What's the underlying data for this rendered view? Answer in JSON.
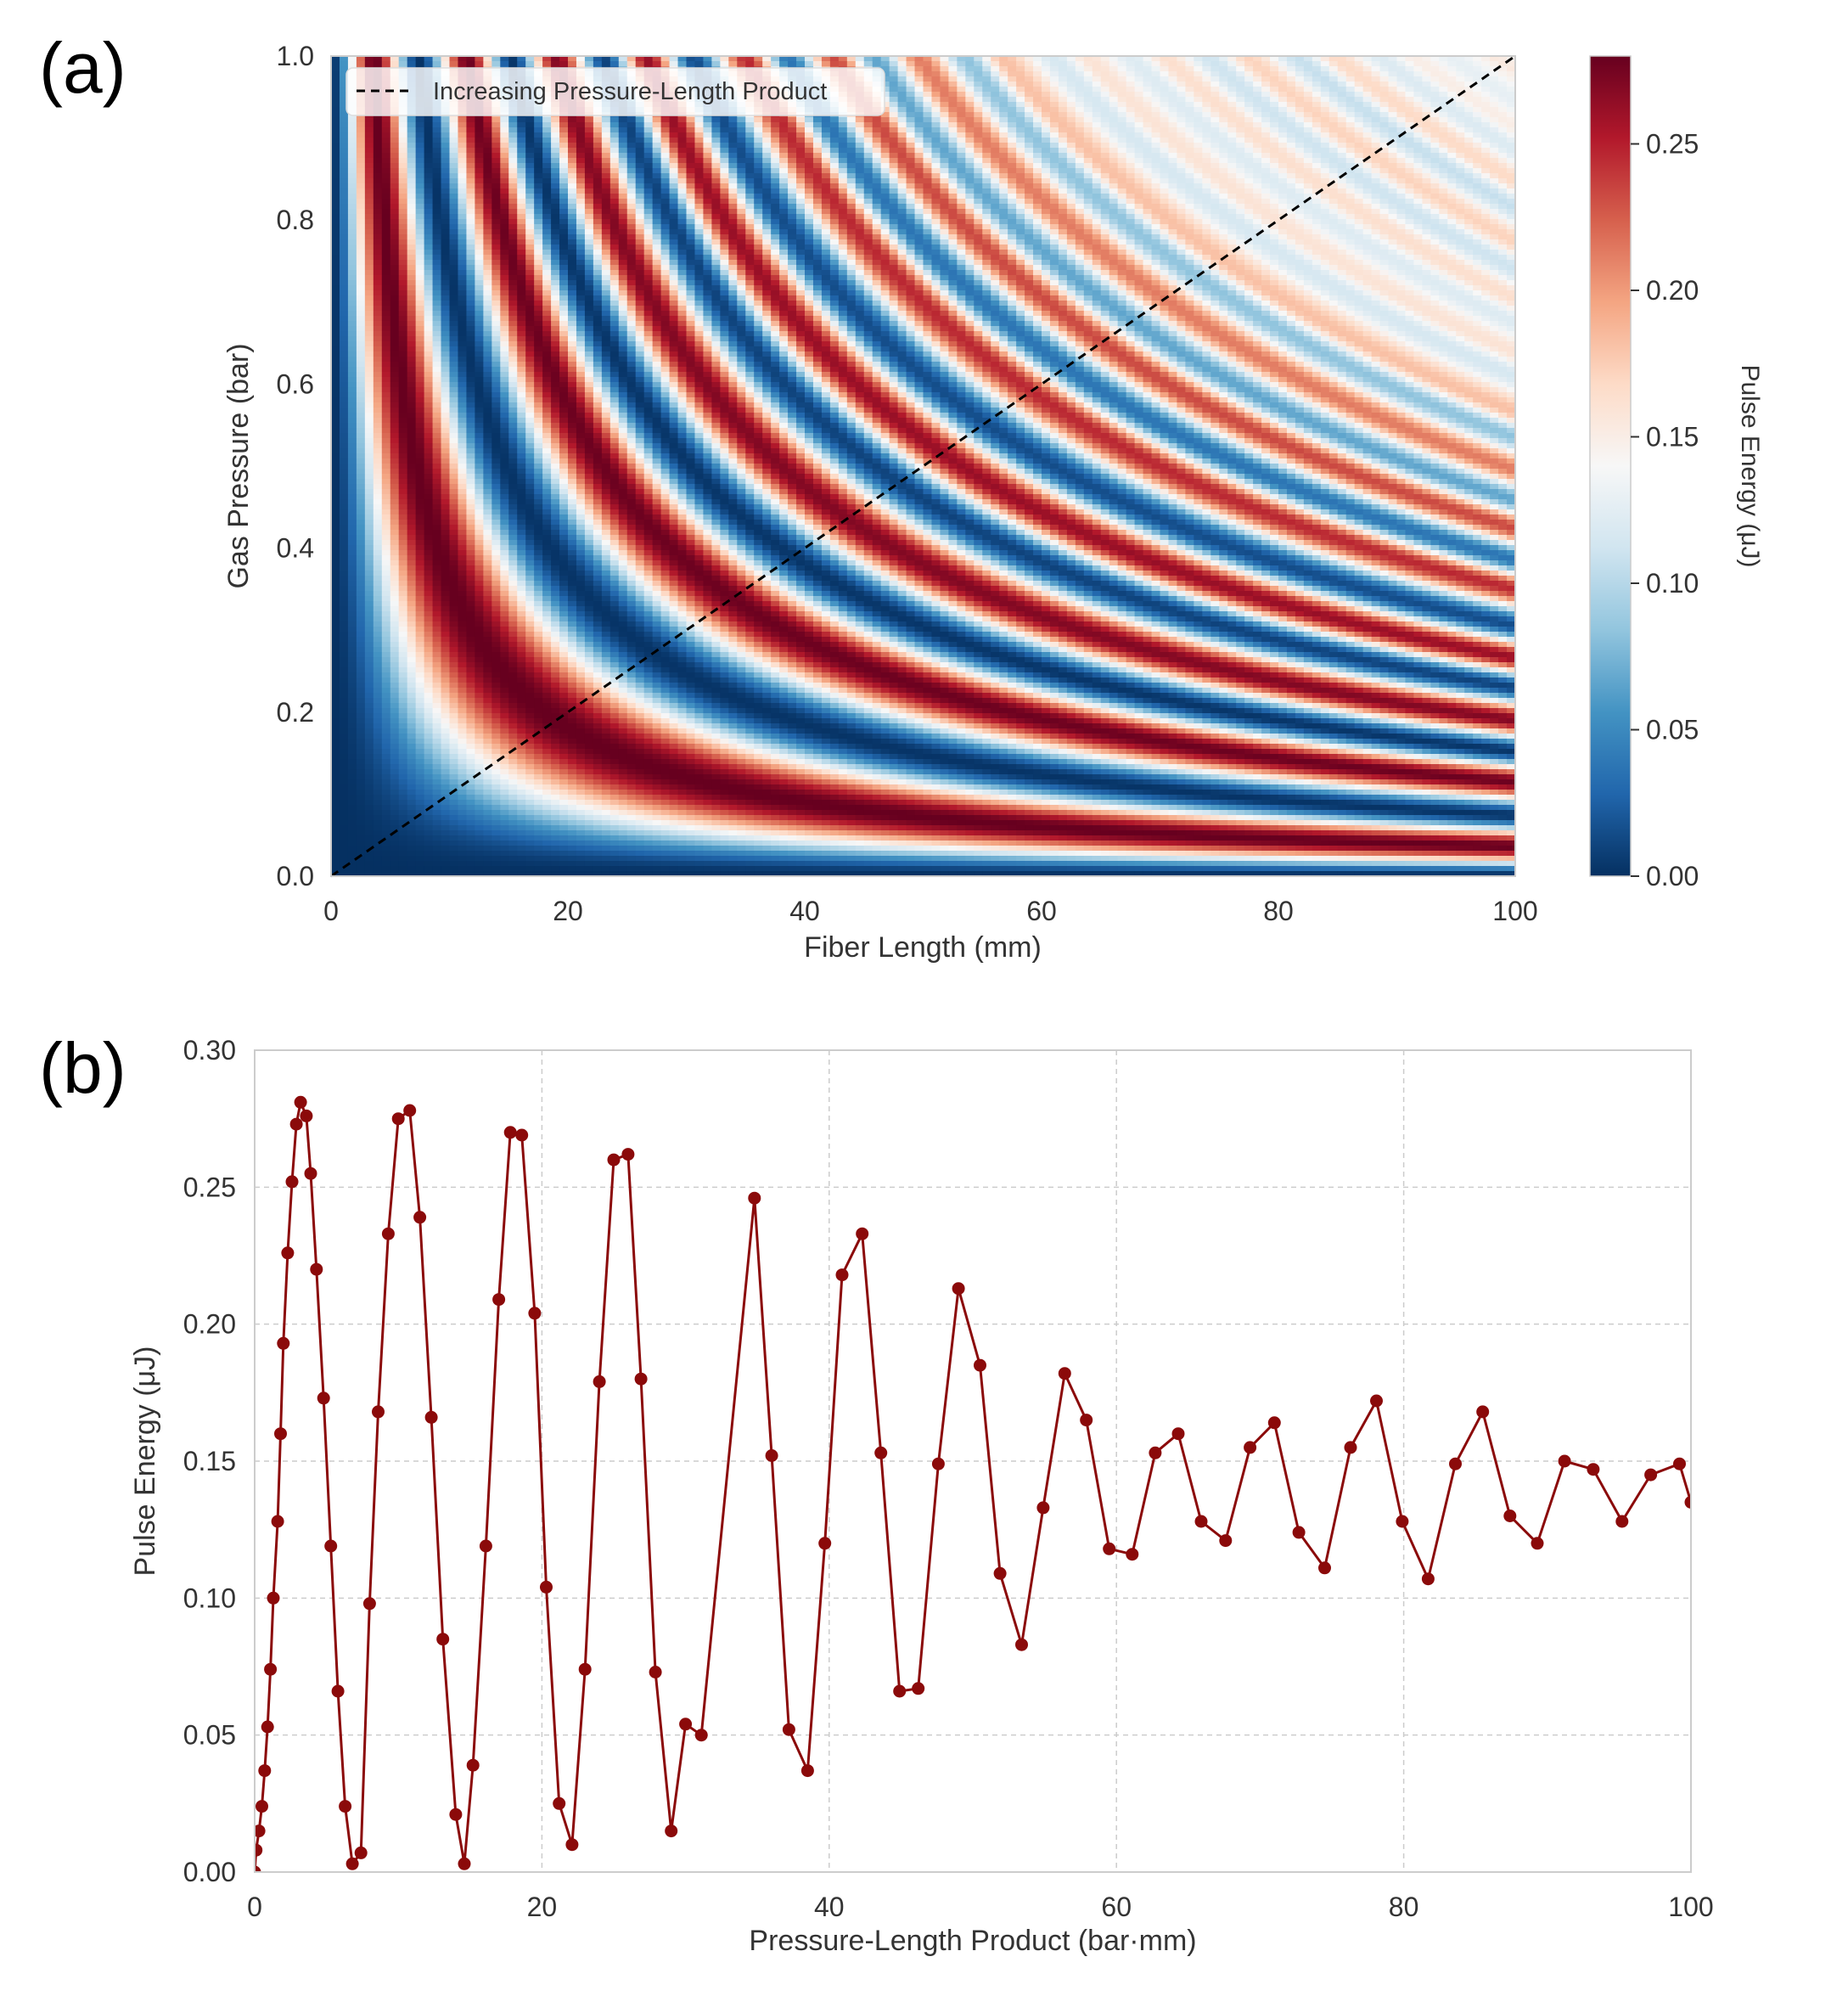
{
  "panels": {
    "a_label": "(a)",
    "b_label": "(b)"
  },
  "chart_data": [
    {
      "type": "heatmap",
      "panel": "(a)",
      "xlabel": "Fiber Length (mm)",
      "ylabel": "Gas Pressure (bar)",
      "xlim": [
        0,
        100
      ],
      "ylim": [
        0,
        1.0
      ],
      "x_ticks": [
        "0",
        "20",
        "40",
        "60",
        "80",
        "100"
      ],
      "y_ticks": [
        "0.0",
        "0.2",
        "0.4",
        "0.6",
        "0.8",
        "1.0"
      ],
      "colormap": "RdBu_r",
      "colorbar_label": "Pulse Energy (μJ)",
      "colorbar_range": [
        0,
        0.28
      ],
      "colorbar_ticks": [
        "0.00",
        "0.05",
        "0.10",
        "0.15",
        "0.20",
        "0.25"
      ],
      "legend": {
        "entries": [
          "Increasing Pressure-Length Product"
        ],
        "placement": "upper-left"
      },
      "overlay_line": {
        "x": [
          0,
          100
        ],
        "y": [
          0,
          1.0
        ],
        "style": "dashed",
        "color": "#000000"
      },
      "field_model": {
        "variable": "pressure-length product P·L (bar·mm)",
        "peaks_at_product": [
          3.6,
          11.5,
          19,
          26.6,
          35,
          42.4,
          49.5,
          56.5,
          63.8,
          70.4,
          77.3,
          84.7,
          91.3,
          97.9
        ],
        "peak_energy_uJ": [
          0.281,
          0.278,
          0.27,
          0.262,
          0.246,
          0.233,
          0.213,
          0.182,
          0.16,
          0.164,
          0.172,
          0.168,
          0.15,
          0.149
        ],
        "trough_at_product": [
          7.4,
          15.2,
          23,
          30.5,
          38.5,
          45.8,
          53.5,
          61,
          67.5,
          74,
          81.5,
          88.5,
          94.5
        ],
        "trough_energy_uJ": [
          0.002,
          0.003,
          0.01,
          0.015,
          0.037,
          0.066,
          0.083,
          0.116,
          0.121,
          0.111,
          0.107,
          0.12,
          0.128
        ]
      }
    },
    {
      "type": "line",
      "panel": "(b)",
      "xlabel": "Pressure-Length Product (bar·mm)",
      "ylabel": "Pulse Energy (μJ)",
      "xlim": [
        0,
        100
      ],
      "ylim": [
        0,
        0.3
      ],
      "x_ticks": [
        "0",
        "20",
        "40",
        "60",
        "80",
        "100"
      ],
      "y_ticks": [
        "0.00",
        "0.05",
        "0.10",
        "0.15",
        "0.20",
        "0.25",
        "0.30"
      ],
      "grid": true,
      "color": "#8b0a0a",
      "marker": "circle",
      "x": [
        0.0,
        0.1,
        0.3,
        0.5,
        0.7,
        0.9,
        1.1,
        1.3,
        1.6,
        1.8,
        2.0,
        2.3,
        2.6,
        2.9,
        3.2,
        3.6,
        3.9,
        4.3,
        4.8,
        5.3,
        5.8,
        6.3,
        6.8,
        7.4,
        8.0,
        8.6,
        9.3,
        10.0,
        10.8,
        11.5,
        12.3,
        13.1,
        14.0,
        14.6,
        15.2,
        16.1,
        17.0,
        17.8,
        18.6,
        19.5,
        20.3,
        21.2,
        22.1,
        23.0,
        24.0,
        25.0,
        26.0,
        26.9,
        27.9,
        29.0,
        30.0,
        31.1,
        34.8,
        36.0,
        37.2,
        38.5,
        39.7,
        40.9,
        42.3,
        43.6,
        44.9,
        46.2,
        47.6,
        49.0,
        50.5,
        51.9,
        53.4,
        54.9,
        56.4,
        57.9,
        59.5,
        61.1,
        62.7,
        64.3,
        65.9,
        67.6,
        69.3,
        71.0,
        72.7,
        74.5,
        76.3,
        78.1,
        79.9,
        81.7,
        83.6,
        85.5,
        87.4,
        89.3,
        91.2,
        93.2,
        95.2,
        97.2,
        99.2,
        100.0
      ],
      "y": [
        0.0,
        0.008,
        0.015,
        0.024,
        0.037,
        0.053,
        0.074,
        0.1,
        0.128,
        0.16,
        0.193,
        0.226,
        0.252,
        0.273,
        0.281,
        0.276,
        0.255,
        0.22,
        0.173,
        0.119,
        0.066,
        0.024,
        0.003,
        0.007,
        0.098,
        0.168,
        0.233,
        0.275,
        0.278,
        0.239,
        0.166,
        0.085,
        0.021,
        0.003,
        0.039,
        0.119,
        0.209,
        0.27,
        0.269,
        0.204,
        0.104,
        0.025,
        0.01,
        0.074,
        0.179,
        0.26,
        0.262,
        0.18,
        0.073,
        0.015,
        0.054,
        0.05,
        0.246,
        0.152,
        0.052,
        0.037,
        0.12,
        0.218,
        0.233,
        0.153,
        0.066,
        0.067,
        0.149,
        0.213,
        0.185,
        0.109,
        0.083,
        0.133,
        0.182,
        0.165,
        0.118,
        0.116,
        0.153,
        0.16,
        0.128,
        0.121,
        0.155,
        0.164,
        0.124,
        0.111,
        0.155,
        0.172,
        0.128,
        0.107,
        0.149,
        0.168,
        0.13,
        0.12,
        0.15,
        0.147,
        0.128,
        0.145,
        0.149,
        0.135
      ]
    }
  ]
}
